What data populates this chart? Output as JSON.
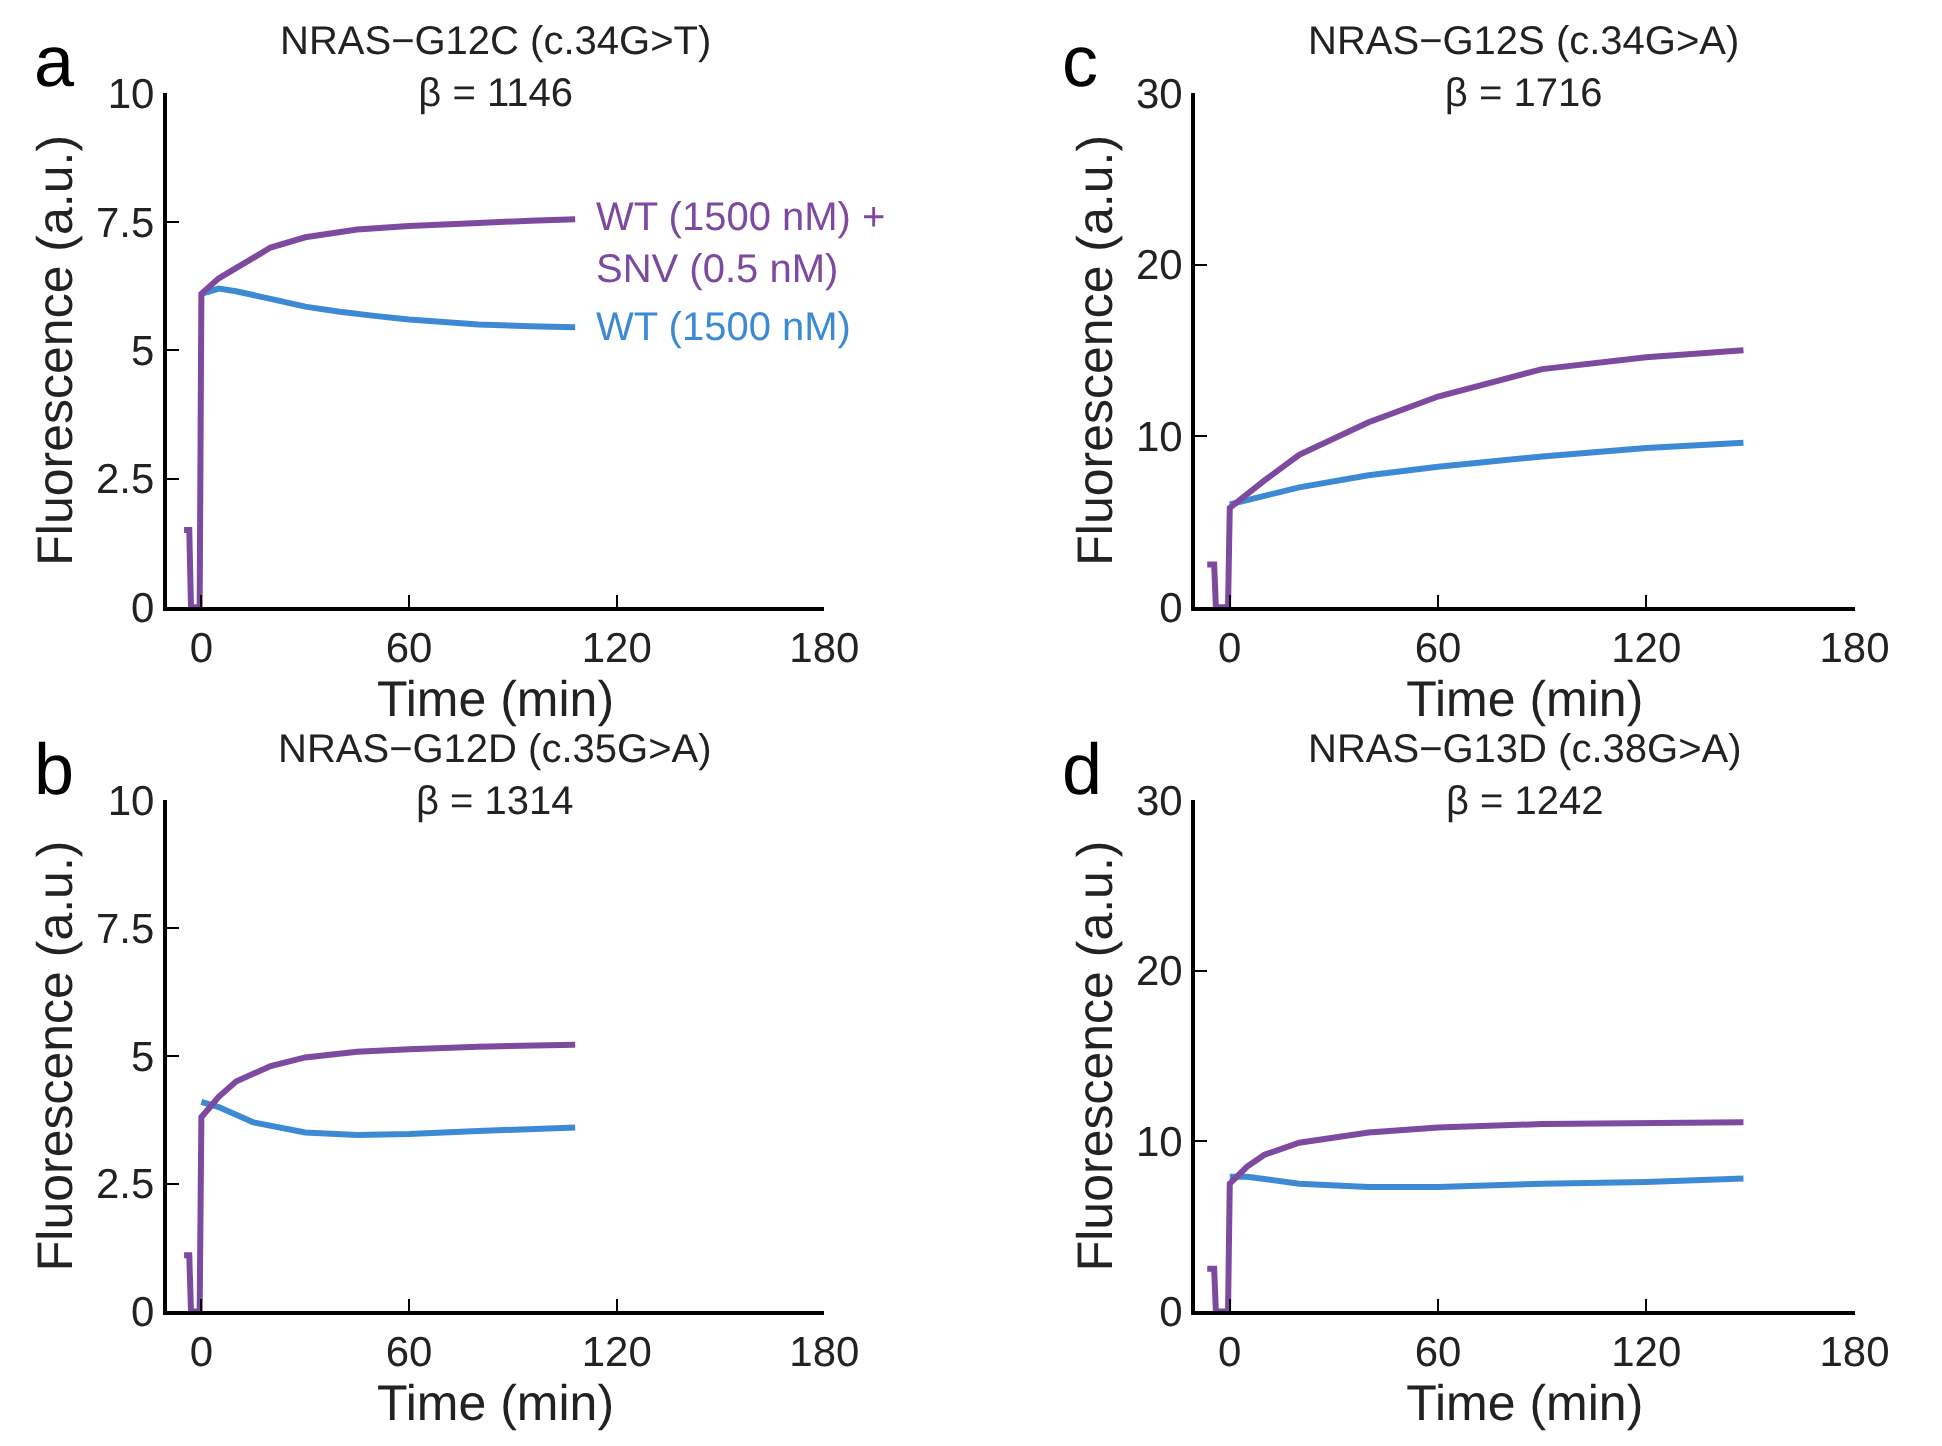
{
  "chart_data": [
    {
      "type": "line",
      "title": "NRAS−G12C (c.34G>T)",
      "subtitle": "β = 1146",
      "xlabel": "Time (min)",
      "ylabel": "Fluorescence (a.u.)",
      "annotations": [
        "a"
      ],
      "xlim": [
        -10,
        180
      ],
      "xticks": [
        0,
        60,
        120,
        180
      ],
      "ylim": [
        0,
        10
      ],
      "yticks": [
        0,
        2.5,
        5,
        7.5,
        10
      ],
      "legend": false,
      "marker": "none",
      "line_style": "solid",
      "series": [
        {
          "name": "WT (1500 nM)",
          "color": "#3d8ad4",
          "x": [
            0,
            5,
            10,
            20,
            30,
            40,
            50,
            60,
            70,
            80,
            95,
            108
          ],
          "values": [
            6.1,
            6.2,
            6.15,
            6.0,
            5.85,
            5.75,
            5.67,
            5.6,
            5.55,
            5.5,
            5.47,
            5.45
          ]
        },
        {
          "name": "WT (1500 nM) +\nSNV (0.5 nM)",
          "color": "#7d4a9f",
          "x": [
            -5,
            -3.5,
            -3,
            -0.5,
            0,
            5,
            10,
            20,
            30,
            45,
            60,
            80,
            95,
            108
          ],
          "values": [
            1.5,
            1.5,
            0,
            0,
            6.1,
            6.4,
            6.6,
            7.0,
            7.2,
            7.35,
            7.42,
            7.48,
            7.52,
            7.55
          ]
        }
      ]
    },
    {
      "type": "line",
      "title": "NRAS−G12S (c.34G>A)",
      "subtitle": "β = 1716",
      "xlabel": "Time (min)",
      "ylabel": "Fluorescence (a.u.)",
      "annotations": [
        "c"
      ],
      "xlim": [
        -10,
        180
      ],
      "xticks": [
        0,
        60,
        120,
        180
      ],
      "ylim": [
        0,
        30
      ],
      "yticks": [
        0,
        10,
        20,
        30
      ],
      "legend": false,
      "marker": "none",
      "line_style": "solid",
      "series": [
        {
          "color": "#3d8ad4",
          "x": [
            0,
            10,
            20,
            40,
            60,
            90,
            120,
            148
          ],
          "values": [
            6.0,
            6.5,
            7.0,
            7.7,
            8.2,
            8.8,
            9.3,
            9.6
          ]
        },
        {
          "color": "#7d4a9f",
          "x": [
            -6.5,
            -4.5,
            -4,
            -0.5,
            0,
            10,
            20,
            40,
            60,
            90,
            120,
            148
          ],
          "values": [
            2.5,
            2.5,
            0,
            0,
            5.8,
            7.4,
            8.9,
            10.8,
            12.3,
            13.9,
            14.6,
            15.0
          ]
        }
      ]
    },
    {
      "type": "line",
      "title": "NRAS−G12D (c.35G>A)",
      "subtitle": "β = 1314",
      "xlabel": "Time (min)",
      "ylabel": "Fluorescence (a.u.)",
      "annotations": [
        "b"
      ],
      "xlim": [
        -10,
        180
      ],
      "xticks": [
        0,
        60,
        120,
        180
      ],
      "ylim": [
        0,
        10
      ],
      "yticks": [
        0,
        2.5,
        5,
        7.5,
        10
      ],
      "legend": false,
      "marker": "none",
      "line_style": "solid",
      "series": [
        {
          "color": "#3d8ad4",
          "x": [
            0,
            5,
            15,
            30,
            45,
            60,
            80,
            108
          ],
          "values": [
            4.1,
            4.0,
            3.7,
            3.5,
            3.45,
            3.47,
            3.53,
            3.6
          ]
        },
        {
          "color": "#7d4a9f",
          "x": [
            -5,
            -3.5,
            -3,
            -0.5,
            0,
            5,
            10,
            20,
            30,
            45,
            60,
            80,
            108
          ],
          "values": [
            1.1,
            1.1,
            0,
            0,
            3.8,
            4.2,
            4.5,
            4.8,
            4.97,
            5.08,
            5.13,
            5.18,
            5.22
          ]
        }
      ]
    },
    {
      "type": "line",
      "title": "NRAS−G13D (c.38G>A)",
      "subtitle": "β = 1242",
      "xlabel": "Time (min)",
      "ylabel": "Fluorescence (a.u.)",
      "annotations": [
        "d"
      ],
      "xlim": [
        -10,
        180
      ],
      "xticks": [
        0,
        60,
        120,
        180
      ],
      "ylim": [
        0,
        30
      ],
      "yticks": [
        0,
        10,
        20,
        30
      ],
      "legend": false,
      "marker": "none",
      "line_style": "solid",
      "series": [
        {
          "color": "#3d8ad4",
          "x": [
            0,
            5,
            20,
            40,
            60,
            90,
            120,
            148
          ],
          "values": [
            7.9,
            7.9,
            7.5,
            7.3,
            7.3,
            7.5,
            7.6,
            7.8
          ]
        },
        {
          "color": "#7d4a9f",
          "x": [
            -6.5,
            -4.5,
            -4,
            -0.5,
            0,
            5,
            10,
            20,
            40,
            60,
            90,
            148
          ],
          "values": [
            2.5,
            2.5,
            0,
            0,
            7.5,
            8.5,
            9.2,
            9.9,
            10.5,
            10.8,
            11.0,
            11.1
          ]
        }
      ]
    }
  ]
}
